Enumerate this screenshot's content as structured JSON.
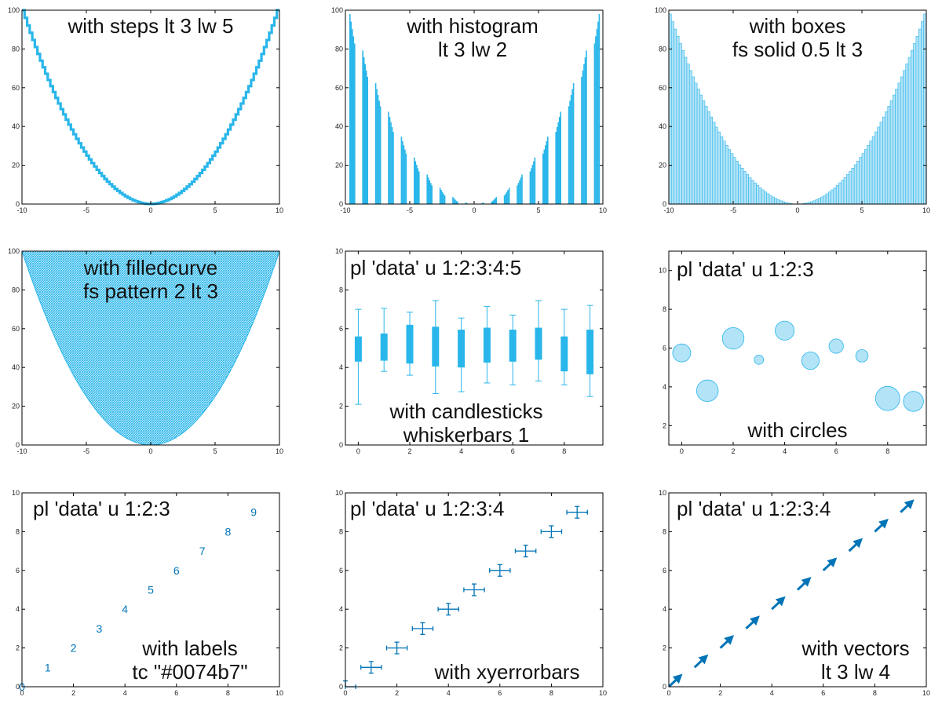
{
  "colors": {
    "line": "#29b6ea",
    "fill": "#b3e3f7",
    "label": "#0074b7",
    "axis": "#000000"
  },
  "chart_data": [
    {
      "type": "line",
      "style": "steps",
      "xlim": [
        -10,
        10
      ],
      "ylim": [
        0,
        100
      ],
      "xticks": [
        -10,
        -5,
        0,
        5,
        10
      ],
      "yticks": [
        0,
        20,
        40,
        60,
        80,
        100
      ],
      "function": "x^2",
      "samples": 100,
      "annotation": [
        "with steps lt 3 lw 5"
      ]
    },
    {
      "type": "bar",
      "style": "histogram",
      "xlim": [
        -10,
        10
      ],
      "ylim": [
        0,
        100
      ],
      "xticks": [
        -10,
        -5,
        0,
        5,
        10
      ],
      "yticks": [
        0,
        20,
        40,
        60,
        80,
        100
      ],
      "function": "x^2",
      "samples": 100,
      "annotation": [
        "with histogram",
        "lt 3 lw 2"
      ]
    },
    {
      "type": "bar",
      "style": "boxes",
      "xlim": [
        -10,
        10
      ],
      "ylim": [
        0,
        100
      ],
      "xticks": [
        -10,
        -5,
        0,
        5,
        10
      ],
      "yticks": [
        0,
        20,
        40,
        60,
        80,
        100
      ],
      "function": "x^2",
      "samples": 100,
      "annotation": [
        "with boxes",
        "fs solid 0.5 lt 3"
      ]
    },
    {
      "type": "area",
      "style": "filledcurve",
      "xlim": [
        -10,
        10
      ],
      "ylim": [
        0,
        100
      ],
      "xticks": [
        -10,
        -5,
        0,
        5,
        10
      ],
      "yticks": [
        0,
        20,
        40,
        60,
        80,
        100
      ],
      "function": "x^2",
      "samples": 100,
      "annotation": [
        "with filledcurve",
        "fs pattern 2 lt 3"
      ]
    },
    {
      "type": "candlestick",
      "style": "candlesticks",
      "xlim": [
        -0.5,
        9.5
      ],
      "ylim": [
        0,
        10
      ],
      "xticks": [
        0,
        2,
        4,
        6,
        8
      ],
      "yticks": [
        0,
        2,
        4,
        6,
        8,
        10
      ],
      "x": [
        0,
        1,
        2,
        3,
        4,
        5,
        6,
        7,
        8,
        9
      ],
      "open": [
        4.3,
        4.35,
        4.2,
        4.05,
        4.0,
        4.25,
        4.3,
        4.4,
        3.8,
        3.65
      ],
      "low": [
        2.1,
        3.8,
        3.6,
        2.65,
        2.75,
        3.2,
        3.1,
        3.3,
        3.1,
        2.5
      ],
      "high": [
        7.0,
        7.05,
        6.85,
        7.45,
        6.55,
        7.15,
        6.7,
        7.45,
        7.0,
        7.2
      ],
      "close": [
        5.6,
        5.75,
        6.2,
        6.1,
        5.95,
        6.05,
        5.95,
        6.05,
        5.6,
        5.95
      ],
      "annotation_top": [
        "pl 'data' u 1:2:3:4:5"
      ],
      "annotation_bottom": [
        "with candlesticks",
        "whiskerbars 1"
      ]
    },
    {
      "type": "scatter",
      "style": "circles",
      "xlim": [
        -0.5,
        9.5
      ],
      "ylim": [
        1,
        11
      ],
      "xticks": [
        0,
        2,
        4,
        6,
        8
      ],
      "yticks": [
        2,
        4,
        6,
        8,
        10
      ],
      "x": [
        0,
        1,
        2,
        3,
        4,
        5,
        6,
        7,
        8,
        9
      ],
      "y": [
        5.75,
        3.8,
        6.5,
        5.4,
        6.9,
        5.35,
        6.1,
        5.6,
        3.4,
        3.25
      ],
      "r": [
        0.35,
        0.42,
        0.42,
        0.18,
        0.37,
        0.34,
        0.28,
        0.24,
        0.47,
        0.39
      ],
      "annotation_top": [
        "pl 'data' u 1:2:3"
      ],
      "annotation_bottom": [
        "with circles"
      ]
    },
    {
      "type": "scatter",
      "style": "labels",
      "xlim": [
        0,
        10
      ],
      "ylim": [
        0,
        10
      ],
      "xticks": [
        0,
        2,
        4,
        6,
        8,
        10
      ],
      "yticks": [
        0,
        2,
        4,
        6,
        8,
        10
      ],
      "x": [
        0,
        1,
        2,
        3,
        4,
        5,
        6,
        7,
        8,
        9
      ],
      "y": [
        0,
        1,
        2,
        3,
        4,
        5,
        6,
        7,
        8,
        9
      ],
      "labels": [
        "0",
        "1",
        "2",
        "3",
        "4",
        "5",
        "6",
        "7",
        "8",
        "9"
      ],
      "annotation_top": [
        "pl 'data' u 1:2:3"
      ],
      "annotation_bottom": [
        "with labels",
        "tc \"#0074b7\""
      ]
    },
    {
      "type": "scatter",
      "style": "xyerrorbars",
      "xlim": [
        0,
        10
      ],
      "ylim": [
        0,
        10
      ],
      "xticks": [
        0,
        2,
        4,
        6,
        8,
        10
      ],
      "yticks": [
        0,
        2,
        4,
        6,
        8,
        10
      ],
      "x": [
        0,
        1,
        2,
        3,
        4,
        5,
        6,
        7,
        8,
        9
      ],
      "y": [
        0,
        1,
        2,
        3,
        4,
        5,
        6,
        7,
        8,
        9
      ],
      "xerr": 0.4,
      "yerr": 0.3,
      "annotation_top": [
        "pl 'data' u 1:2:3:4"
      ],
      "annotation_bottom": [
        "with xyerrorbars"
      ]
    },
    {
      "type": "line",
      "style": "vectors",
      "xlim": [
        0,
        10
      ],
      "ylim": [
        0,
        10
      ],
      "xticks": [
        0,
        2,
        4,
        6,
        8,
        10
      ],
      "yticks": [
        0,
        2,
        4,
        6,
        8,
        10
      ],
      "x": [
        0,
        1,
        2,
        3,
        4,
        5,
        6,
        7,
        8,
        9
      ],
      "y": [
        0,
        1,
        2,
        3,
        4,
        5,
        6,
        7,
        8,
        9
      ],
      "dx": 0.4,
      "dy": 0.5,
      "annotation_top": [
        "pl 'data' u 1:2:3:4"
      ],
      "annotation_bottom": [
        "with vectors",
        "lt 3 lw 4"
      ]
    }
  ]
}
